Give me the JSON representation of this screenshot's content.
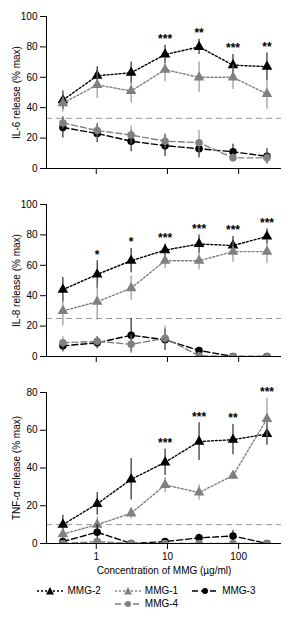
{
  "chart_data": [
    {
      "type": "line",
      "log": "x",
      "y_label": "IL-6 release (% max)",
      "tick_labels": "y",
      "x": [
        0.34,
        1.03,
        3.09,
        9.26,
        27.8,
        83.3,
        250
      ],
      "xlim": [
        0.2,
        400
      ],
      "xticks": [
        1,
        10,
        100
      ],
      "ylim": [
        0,
        100
      ],
      "yticks": [
        0,
        20,
        40,
        60,
        80,
        100
      ],
      "baseline": 33,
      "series": [
        {
          "name": "MMG-2",
          "color": "#000000",
          "marker": "triangle",
          "line_style": "dotted",
          "values": [
            45,
            61,
            63,
            75,
            80,
            68,
            67
          ],
          "errors": [
            6,
            6,
            7,
            6,
            5,
            7,
            9
          ]
        },
        {
          "name": "MMG-1",
          "color": "#808080",
          "marker": "triangle",
          "line_style": "dotted",
          "values": [
            43,
            55,
            51,
            65,
            60,
            60,
            49
          ],
          "errors": [
            6,
            9,
            8,
            8,
            10,
            8,
            10
          ]
        },
        {
          "name": "MMG-3",
          "color": "#000000",
          "marker": "circle",
          "line_style": "dashed",
          "values": [
            27,
            23,
            18,
            15,
            13,
            11,
            8
          ],
          "errors": [
            7,
            6,
            7,
            7,
            6,
            5,
            5
          ]
        },
        {
          "name": "MMG-4",
          "color": "#808080",
          "marker": "circle",
          "line_style": "dashed",
          "values": [
            30,
            25,
            22,
            18,
            17,
            7,
            7
          ],
          "errors": [
            4,
            5,
            6,
            5,
            8,
            3,
            3
          ]
        }
      ],
      "annotations": [
        {
          "x": 9.26,
          "text": "***"
        },
        {
          "x": 27.8,
          "text": "**"
        },
        {
          "x": 83.3,
          "text": "***"
        },
        {
          "x": 250,
          "text": "**"
        }
      ]
    },
    {
      "type": "line",
      "log": "x",
      "y_label": "IL-8 release (% max)",
      "tick_labels": "y",
      "x": [
        0.34,
        1.03,
        3.09,
        9.26,
        27.8,
        83.3,
        250
      ],
      "xlim": [
        0.2,
        400
      ],
      "xticks": [
        1,
        10,
        100
      ],
      "ylim": [
        0,
        100
      ],
      "yticks": [
        0,
        20,
        40,
        60,
        80,
        100
      ],
      "baseline": 25,
      "series": [
        {
          "name": "MMG-2",
          "color": "#000000",
          "marker": "triangle",
          "line_style": "dotted",
          "values": [
            44,
            54,
            63,
            70,
            74,
            73,
            79
          ],
          "errors": [
            8,
            9,
            8,
            4,
            6,
            6,
            5
          ]
        },
        {
          "name": "MMG-1",
          "color": "#808080",
          "marker": "triangle",
          "line_style": "dotted",
          "values": [
            30,
            36,
            45,
            63,
            63,
            69,
            69
          ],
          "errors": [
            10,
            12,
            8,
            5,
            6,
            7,
            8
          ]
        },
        {
          "name": "MMG-3",
          "color": "#000000",
          "marker": "circle",
          "line_style": "dashed",
          "values": [
            7,
            9,
            14,
            11,
            4,
            0,
            0
          ],
          "errors": [
            4,
            4,
            11,
            7,
            2,
            1,
            1
          ]
        },
        {
          "name": "MMG-4",
          "color": "#808080",
          "marker": "circle",
          "line_style": "dashed",
          "values": [
            9,
            10,
            8,
            12,
            0.5,
            0,
            0
          ],
          "errors": [
            4,
            3,
            6,
            8,
            1,
            1,
            1
          ]
        }
      ],
      "annotations": [
        {
          "x": 1.03,
          "text": "*"
        },
        {
          "x": 3.09,
          "text": "*"
        },
        {
          "x": 9.26,
          "text": "***"
        },
        {
          "x": 27.8,
          "text": "***"
        },
        {
          "x": 83.3,
          "text": "***"
        },
        {
          "x": 250,
          "text": "***"
        }
      ]
    },
    {
      "type": "line",
      "log": "x",
      "y_label": "TNF-α release (% max)",
      "x_label": "Concentration of MMG (µg/ml)",
      "legend": "bottom",
      "x": [
        0.34,
        1.03,
        3.09,
        9.26,
        27.8,
        83.3,
        250
      ],
      "xlim": [
        0.2,
        400
      ],
      "xticks": [
        1,
        10,
        100
      ],
      "ylim": [
        0,
        80
      ],
      "yticks": [
        0,
        20,
        40,
        60,
        80
      ],
      "baseline": 10,
      "series": [
        {
          "name": "MMG-2",
          "color": "#000000",
          "marker": "triangle",
          "line_style": "dotted",
          "values": [
            10,
            21,
            34,
            43,
            54,
            55,
            58
          ],
          "errors": [
            5,
            6,
            11,
            7,
            10,
            8,
            6
          ]
        },
        {
          "name": "MMG-1",
          "color": "#808080",
          "marker": "triangle",
          "line_style": "dotted",
          "values": [
            5,
            10,
            16,
            31,
            27,
            36,
            66
          ],
          "errors": [
            3,
            4,
            3,
            4,
            4,
            2,
            11
          ]
        },
        {
          "name": "MMG-3",
          "color": "#000000",
          "marker": "circle",
          "line_style": "dashed",
          "values": [
            1,
            6,
            0,
            1,
            3,
            4,
            0
          ],
          "errors": [
            1,
            4,
            0.5,
            1,
            2,
            3,
            0.5
          ]
        },
        {
          "name": "MMG-4",
          "color": "#808080",
          "marker": "circle",
          "line_style": "dashed",
          "values": [
            0,
            1,
            0,
            0,
            0,
            0,
            0
          ],
          "errors": [
            0.5,
            1,
            0.5,
            0.5,
            0.5,
            0.5,
            0.5
          ]
        }
      ],
      "annotations": [
        {
          "x": 9.26,
          "text": "***"
        },
        {
          "x": 27.8,
          "text": "***"
        },
        {
          "x": 83.3,
          "text": "**"
        },
        {
          "x": 250,
          "text": "***"
        }
      ]
    }
  ]
}
